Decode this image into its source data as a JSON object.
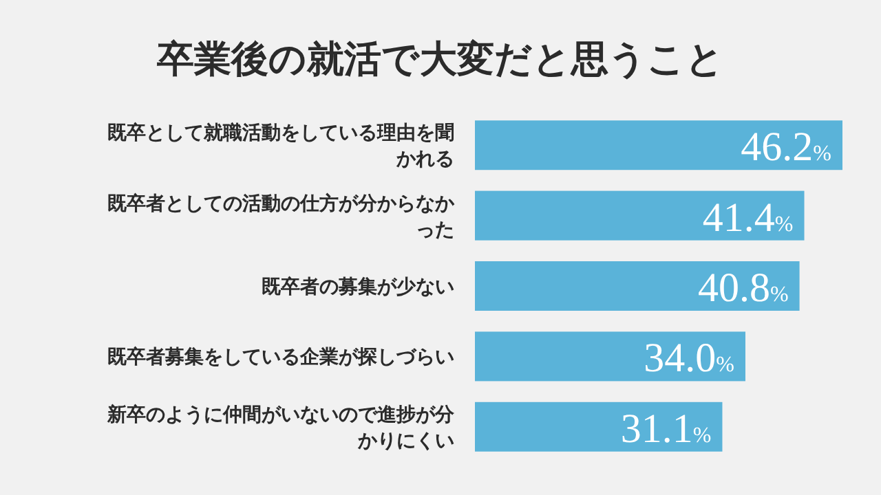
{
  "chart_data": {
    "type": "bar",
    "orientation": "horizontal",
    "title": "卒業後の就活で大変だと思うこと",
    "categories": [
      "既卒として就職活動をしている理由を聞かれる",
      "既卒者としての活動の仕方が分からなかった",
      "既卒者の募集が少ない",
      "既卒者募集をしている企業が探しづらい",
      "新卒のように仲間がいないので進捗が分かりにくい"
    ],
    "values": [
      46.2,
      41.4,
      40.8,
      34.0,
      31.1
    ],
    "value_labels": [
      "46.2%",
      "41.4%",
      "40.8%",
      "34.0%",
      "31.1%"
    ],
    "color": "#5ab3d9"
  }
}
